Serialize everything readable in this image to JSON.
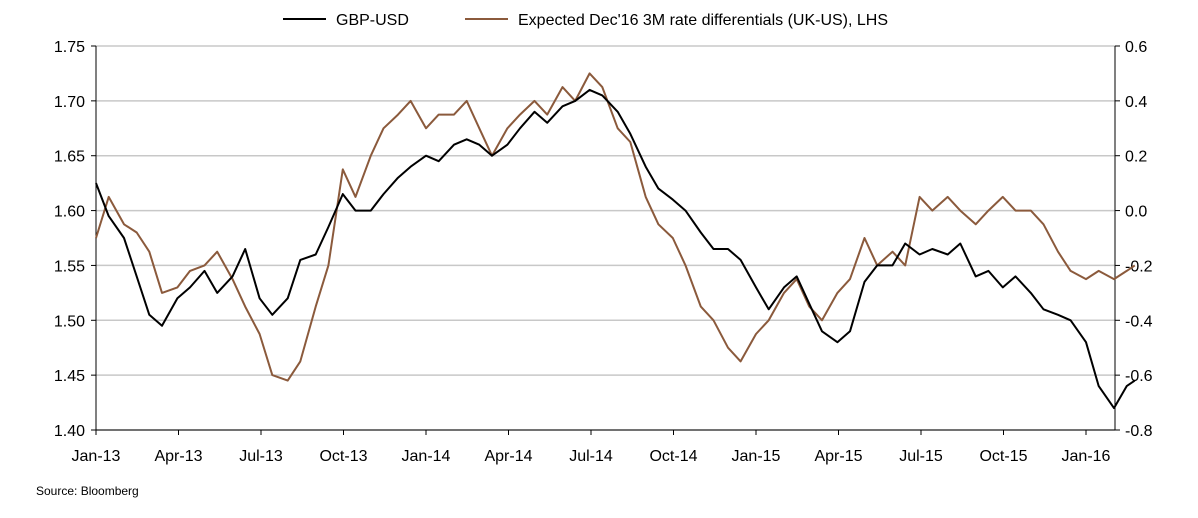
{
  "chart_data": {
    "type": "line",
    "title": "",
    "source": "Source: Bloomberg",
    "x_ticks": [
      "Jan-13",
      "Apr-13",
      "Jul-13",
      "Oct-13",
      "Jan-14",
      "Apr-14",
      "Jul-14",
      "Oct-14",
      "Jan-15",
      "Apr-15",
      "Jul-15",
      "Oct-15",
      "Jan-16"
    ],
    "left_axis": {
      "min": 1.4,
      "max": 1.75,
      "ticks": [
        "1.75",
        "1.70",
        "1.65",
        "1.60",
        "1.55",
        "1.50",
        "1.45",
        "1.40"
      ]
    },
    "right_axis": {
      "min": -0.8,
      "max": 0.6,
      "ticks": [
        "0.6",
        "0.4",
        "0.2",
        "0.0",
        "-0.2",
        "-0.4",
        "-0.6",
        "-0.8"
      ]
    },
    "grid": "horizontal",
    "legend_position": "top",
    "colors": {
      "gbp_usd": "#000000",
      "rate_diff": "#8B5A3C",
      "grid": "#c8c8c8"
    },
    "series": [
      {
        "name": "GBP-USD",
        "axis": "left",
        "x": [
          "2013-01-01",
          "2013-01-15",
          "2013-02-01",
          "2013-02-15",
          "2013-03-01",
          "2013-03-15",
          "2013-04-01",
          "2013-04-15",
          "2013-05-01",
          "2013-05-15",
          "2013-06-01",
          "2013-06-15",
          "2013-07-01",
          "2013-07-15",
          "2013-08-01",
          "2013-08-15",
          "2013-09-01",
          "2013-09-15",
          "2013-10-01",
          "2013-10-15",
          "2013-11-01",
          "2013-11-15",
          "2013-12-01",
          "2013-12-15",
          "2014-01-01",
          "2014-01-15",
          "2014-02-01",
          "2014-02-15",
          "2014-03-01",
          "2014-03-15",
          "2014-04-01",
          "2014-04-15",
          "2014-05-01",
          "2014-05-15",
          "2014-06-01",
          "2014-06-15",
          "2014-07-01",
          "2014-07-15",
          "2014-08-01",
          "2014-08-15",
          "2014-09-01",
          "2014-09-15",
          "2014-10-01",
          "2014-10-15",
          "2014-11-01",
          "2014-11-15",
          "2014-12-01",
          "2014-12-15",
          "2015-01-01",
          "2015-01-15",
          "2015-02-01",
          "2015-02-15",
          "2015-03-01",
          "2015-03-15",
          "2015-04-01",
          "2015-04-15",
          "2015-05-01",
          "2015-05-15",
          "2015-06-01",
          "2015-06-15",
          "2015-07-01",
          "2015-07-15",
          "2015-08-01",
          "2015-08-15",
          "2015-09-01",
          "2015-09-15",
          "2015-10-01",
          "2015-10-15",
          "2015-11-01",
          "2015-11-15",
          "2015-12-01",
          "2015-12-15",
          "2016-01-01",
          "2016-01-15",
          "2016-02-01",
          "2016-02-15",
          "2016-02-24"
        ],
        "values": [
          1.625,
          1.595,
          1.575,
          1.54,
          1.505,
          1.495,
          1.52,
          1.53,
          1.545,
          1.525,
          1.54,
          1.565,
          1.52,
          1.505,
          1.52,
          1.555,
          1.56,
          1.585,
          1.615,
          1.6,
          1.6,
          1.615,
          1.63,
          1.64,
          1.65,
          1.645,
          1.66,
          1.665,
          1.66,
          1.65,
          1.66,
          1.675,
          1.69,
          1.68,
          1.695,
          1.7,
          1.71,
          1.705,
          1.69,
          1.67,
          1.64,
          1.62,
          1.61,
          1.6,
          1.58,
          1.565,
          1.565,
          1.555,
          1.53,
          1.51,
          1.53,
          1.54,
          1.515,
          1.49,
          1.48,
          1.49,
          1.535,
          1.55,
          1.55,
          1.57,
          1.56,
          1.565,
          1.56,
          1.57,
          1.54,
          1.545,
          1.53,
          1.54,
          1.525,
          1.51,
          1.505,
          1.5,
          1.48,
          1.44,
          1.42,
          1.44,
          1.445
        ]
      },
      {
        "name": "Expected Dec'16 3M rate differentials (UK-US), LHS",
        "axis": "right",
        "x": [
          "2013-01-01",
          "2013-01-15",
          "2013-02-01",
          "2013-02-15",
          "2013-03-01",
          "2013-03-15",
          "2013-04-01",
          "2013-04-15",
          "2013-05-01",
          "2013-05-15",
          "2013-06-01",
          "2013-06-15",
          "2013-07-01",
          "2013-07-15",
          "2013-08-01",
          "2013-08-15",
          "2013-09-01",
          "2013-09-15",
          "2013-10-01",
          "2013-10-15",
          "2013-11-01",
          "2013-11-15",
          "2013-12-01",
          "2013-12-15",
          "2014-01-01",
          "2014-01-15",
          "2014-02-01",
          "2014-02-15",
          "2014-03-01",
          "2014-03-15",
          "2014-04-01",
          "2014-04-15",
          "2014-05-01",
          "2014-05-15",
          "2014-06-01",
          "2014-06-15",
          "2014-07-01",
          "2014-07-15",
          "2014-08-01",
          "2014-08-15",
          "2014-09-01",
          "2014-09-15",
          "2014-10-01",
          "2014-10-15",
          "2014-11-01",
          "2014-11-15",
          "2014-12-01",
          "2014-12-15",
          "2015-01-01",
          "2015-01-15",
          "2015-02-01",
          "2015-02-15",
          "2015-03-01",
          "2015-03-15",
          "2015-04-01",
          "2015-04-15",
          "2015-05-01",
          "2015-05-15",
          "2015-06-01",
          "2015-06-15",
          "2015-07-01",
          "2015-07-15",
          "2015-08-01",
          "2015-08-15",
          "2015-09-01",
          "2015-09-15",
          "2015-10-01",
          "2015-10-15",
          "2015-11-01",
          "2015-11-15",
          "2015-12-01",
          "2015-12-15",
          "2016-01-01",
          "2016-01-15",
          "2016-02-01",
          "2016-02-15",
          "2016-02-24"
        ],
        "values": [
          -0.1,
          0.05,
          -0.05,
          -0.08,
          -0.15,
          -0.3,
          -0.28,
          -0.22,
          -0.2,
          -0.15,
          -0.25,
          -0.35,
          -0.45,
          -0.6,
          -0.62,
          -0.55,
          -0.35,
          -0.2,
          0.15,
          0.05,
          0.2,
          0.3,
          0.35,
          0.4,
          0.3,
          0.35,
          0.35,
          0.4,
          0.3,
          0.2,
          0.3,
          0.35,
          0.4,
          0.35,
          0.45,
          0.4,
          0.5,
          0.45,
          0.3,
          0.25,
          0.05,
          -0.05,
          -0.1,
          -0.2,
          -0.35,
          -0.4,
          -0.5,
          -0.55,
          -0.45,
          -0.4,
          -0.3,
          -0.25,
          -0.35,
          -0.4,
          -0.3,
          -0.25,
          -0.1,
          -0.2,
          -0.15,
          -0.2,
          0.05,
          0.0,
          0.05,
          0.0,
          -0.05,
          0.0,
          0.05,
          0.0,
          0.0,
          -0.05,
          -0.15,
          -0.22,
          -0.25,
          -0.22,
          -0.25,
          -0.22,
          -0.2
        ]
      }
    ]
  }
}
